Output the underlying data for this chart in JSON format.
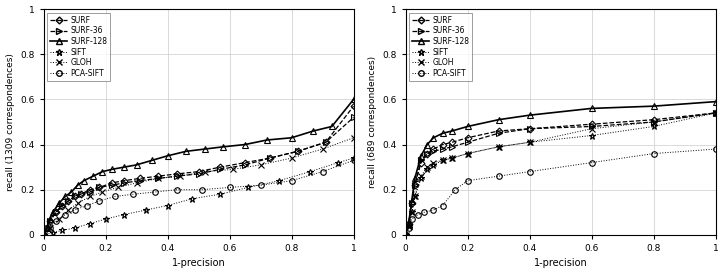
{
  "plot1": {
    "ylabel": "recall (1309 correspondences)",
    "xlabel": "1-precision",
    "ylim": [
      0,
      1
    ],
    "xlim": [
      0,
      1
    ],
    "SURF128": {
      "x": [
        0.0,
        0.01,
        0.02,
        0.03,
        0.05,
        0.07,
        0.09,
        0.11,
        0.13,
        0.16,
        0.19,
        0.22,
        0.26,
        0.3,
        0.35,
        0.4,
        0.46,
        0.52,
        0.58,
        0.65,
        0.72,
        0.8,
        0.87,
        0.93,
        1.0
      ],
      "y": [
        0.0,
        0.03,
        0.07,
        0.1,
        0.14,
        0.17,
        0.19,
        0.22,
        0.24,
        0.26,
        0.28,
        0.29,
        0.3,
        0.31,
        0.33,
        0.35,
        0.37,
        0.38,
        0.39,
        0.4,
        0.42,
        0.43,
        0.46,
        0.48,
        0.6
      ],
      "linestyle": "-",
      "marker": "^"
    },
    "SURF": {
      "x": [
        0.0,
        0.01,
        0.02,
        0.04,
        0.06,
        0.08,
        0.1,
        0.12,
        0.15,
        0.18,
        0.22,
        0.26,
        0.31,
        0.37,
        0.43,
        0.5,
        0.57,
        0.65,
        0.73,
        0.82,
        0.91,
        1.0
      ],
      "y": [
        0.0,
        0.03,
        0.06,
        0.1,
        0.13,
        0.15,
        0.17,
        0.18,
        0.2,
        0.21,
        0.23,
        0.24,
        0.25,
        0.26,
        0.27,
        0.28,
        0.3,
        0.32,
        0.34,
        0.37,
        0.41,
        0.57
      ],
      "linestyle": "--",
      "marker": "D"
    },
    "SURF36": {
      "x": [
        0.0,
        0.01,
        0.02,
        0.04,
        0.06,
        0.08,
        0.1,
        0.12,
        0.15,
        0.18,
        0.22,
        0.26,
        0.31,
        0.37,
        0.43,
        0.5,
        0.57,
        0.65,
        0.73,
        0.82,
        0.91,
        1.0
      ],
      "y": [
        0.0,
        0.03,
        0.06,
        0.1,
        0.13,
        0.15,
        0.17,
        0.18,
        0.19,
        0.21,
        0.22,
        0.23,
        0.24,
        0.25,
        0.26,
        0.27,
        0.29,
        0.31,
        0.34,
        0.37,
        0.41,
        0.52
      ],
      "linestyle": "--",
      "marker": ">"
    },
    "GLOH": {
      "x": [
        0.0,
        0.02,
        0.05,
        0.08,
        0.11,
        0.15,
        0.19,
        0.24,
        0.3,
        0.37,
        0.44,
        0.52,
        0.61,
        0.7,
        0.8,
        0.9,
        1.0
      ],
      "y": [
        0.0,
        0.03,
        0.07,
        0.11,
        0.14,
        0.17,
        0.19,
        0.21,
        0.23,
        0.25,
        0.26,
        0.28,
        0.29,
        0.31,
        0.34,
        0.38,
        0.43
      ],
      "linestyle": ":",
      "marker": "x"
    },
    "SIFT": {
      "x": [
        0.0,
        0.03,
        0.06,
        0.1,
        0.15,
        0.2,
        0.26,
        0.33,
        0.4,
        0.48,
        0.57,
        0.66,
        0.76,
        0.86,
        0.95,
        1.0
      ],
      "y": [
        0.0,
        0.01,
        0.02,
        0.03,
        0.05,
        0.07,
        0.09,
        0.11,
        0.13,
        0.16,
        0.18,
        0.21,
        0.24,
        0.28,
        0.32,
        0.34
      ],
      "linestyle": ":",
      "marker": "*"
    },
    "PCASIFT": {
      "x": [
        0.0,
        0.02,
        0.04,
        0.07,
        0.1,
        0.14,
        0.18,
        0.23,
        0.29,
        0.36,
        0.43,
        0.51,
        0.6,
        0.7,
        0.8,
        0.9,
        1.0
      ],
      "y": [
        0.0,
        0.03,
        0.06,
        0.09,
        0.11,
        0.13,
        0.15,
        0.17,
        0.18,
        0.19,
        0.2,
        0.2,
        0.21,
        0.22,
        0.24,
        0.28,
        0.33
      ],
      "linestyle": ":",
      "marker": "o"
    }
  },
  "plot2": {
    "ylabel": "recall (689 correspondences)",
    "xlabel": "1-precision",
    "ylim": [
      0,
      1
    ],
    "xlim": [
      0,
      1
    ],
    "SURF128": {
      "x": [
        0.0,
        0.01,
        0.02,
        0.03,
        0.05,
        0.07,
        0.09,
        0.12,
        0.15,
        0.2,
        0.3,
        0.4,
        0.6,
        0.8,
        1.0
      ],
      "y": [
        0.0,
        0.05,
        0.15,
        0.25,
        0.35,
        0.4,
        0.43,
        0.45,
        0.46,
        0.48,
        0.51,
        0.53,
        0.56,
        0.57,
        0.59
      ],
      "linestyle": "-",
      "marker": "^"
    },
    "SURF": {
      "x": [
        0.0,
        0.01,
        0.02,
        0.03,
        0.05,
        0.07,
        0.09,
        0.12,
        0.15,
        0.2,
        0.3,
        0.4,
        0.6,
        0.8,
        1.0
      ],
      "y": [
        0.0,
        0.05,
        0.14,
        0.22,
        0.32,
        0.36,
        0.38,
        0.4,
        0.41,
        0.43,
        0.46,
        0.47,
        0.49,
        0.51,
        0.54
      ],
      "linestyle": "--",
      "marker": "D"
    },
    "SURF36": {
      "x": [
        0.0,
        0.01,
        0.02,
        0.03,
        0.05,
        0.07,
        0.09,
        0.12,
        0.15,
        0.2,
        0.3,
        0.4,
        0.6,
        0.8,
        1.0
      ],
      "y": [
        0.0,
        0.05,
        0.14,
        0.22,
        0.33,
        0.36,
        0.37,
        0.38,
        0.39,
        0.41,
        0.45,
        0.47,
        0.48,
        0.5,
        0.54
      ],
      "linestyle": "--",
      "marker": ">"
    },
    "GLOH": {
      "x": [
        0.0,
        0.01,
        0.02,
        0.03,
        0.05,
        0.07,
        0.09,
        0.12,
        0.15,
        0.2,
        0.3,
        0.4,
        0.6,
        0.8,
        1.0
      ],
      "y": [
        0.0,
        0.04,
        0.1,
        0.17,
        0.26,
        0.3,
        0.32,
        0.33,
        0.34,
        0.36,
        0.39,
        0.41,
        0.47,
        0.5,
        0.54
      ],
      "linestyle": ":",
      "marker": "x"
    },
    "SIFT": {
      "x": [
        0.0,
        0.01,
        0.02,
        0.03,
        0.05,
        0.07,
        0.09,
        0.12,
        0.15,
        0.2,
        0.3,
        0.4,
        0.6,
        0.8,
        1.0
      ],
      "y": [
        0.0,
        0.04,
        0.1,
        0.17,
        0.25,
        0.29,
        0.31,
        0.33,
        0.34,
        0.36,
        0.39,
        0.41,
        0.44,
        0.48,
        0.54
      ],
      "linestyle": ":",
      "marker": "*"
    },
    "PCASIFT": {
      "x": [
        0.0,
        0.01,
        0.02,
        0.04,
        0.06,
        0.09,
        0.12,
        0.16,
        0.2,
        0.3,
        0.4,
        0.6,
        0.8,
        1.0
      ],
      "y": [
        0.0,
        0.03,
        0.07,
        0.09,
        0.1,
        0.11,
        0.13,
        0.2,
        0.24,
        0.26,
        0.28,
        0.32,
        0.36,
        0.38
      ],
      "linestyle": ":",
      "marker": "o"
    }
  }
}
